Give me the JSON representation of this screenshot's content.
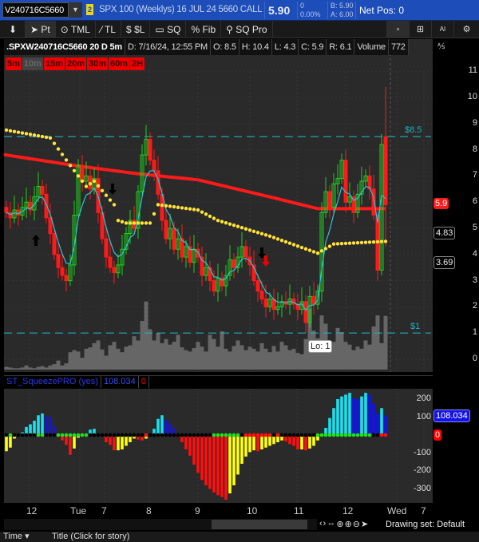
{
  "topbar": {
    "symbol": "V240716C5660",
    "link_badge": "2",
    "description": "SPX 100 (Weeklys) 16 JUL 24 5660 CALL",
    "last": "5.90",
    "change": "0",
    "change_pct": "0.00%",
    "bid": "B: 5.90",
    "ask": "A: 6.00",
    "net_pos": "Net Pos: 0"
  },
  "toolbar": {
    "items": [
      {
        "icon": "pin-icon",
        "label": ""
      },
      {
        "icon": "pointer-icon",
        "label": "Pt"
      },
      {
        "icon": "tml-icon",
        "label": "TML"
      },
      {
        "icon": "trendline-icon",
        "label": "TL"
      },
      {
        "icon": "price-level-icon",
        "label": "$L"
      },
      {
        "icon": "square-icon",
        "label": "SQ"
      },
      {
        "icon": "percent-icon",
        "label": "Fib"
      },
      {
        "icon": "sq-pro-icon",
        "label": "SQ Pro"
      }
    ],
    "right": [
      {
        "icon": "single-layout-icon",
        "glyph": "▫"
      },
      {
        "icon": "grid-layout-icon",
        "glyph": "⊞"
      },
      {
        "icon": "ai-icon",
        "glyph": "AI"
      },
      {
        "icon": "gear-icon",
        "glyph": "⚙"
      }
    ]
  },
  "info": {
    "symbol_period": ".SPXW240716C5660 20 D 5m",
    "date": "D: 7/16/24, 12:55 PM",
    "open": "O: 8.5",
    "high": "H: 10.4",
    "low": "L: 4.3",
    "close": "C: 5.9",
    "range": "R: 6.1",
    "volume_label": "Volume",
    "volume": "772"
  },
  "timeframes": [
    {
      "label": "5m",
      "active": true
    },
    {
      "label": "10m",
      "active": false
    },
    {
      "label": "15m",
      "active": true
    },
    {
      "label": "20m",
      "active": true
    },
    {
      "label": "30m",
      "active": true
    },
    {
      "label": "60m",
      "active": true
    },
    {
      "label": "2H",
      "active": true
    }
  ],
  "colors": {
    "up": "#1fd01f",
    "down": "#ff1a1a",
    "ma_red": "#ff1a1a",
    "dots_yellow": "#ffe23a",
    "ema_cyan": "#2ec4d6",
    "level": "#1fb0c0",
    "volume": "#666666",
    "sq_cyan": "#19e0f0",
    "sq_blue": "#1414e0",
    "sq_red": "#ff1010",
    "sq_yellow": "#ffff10"
  },
  "chart_data": [
    {
      "type": "candlestick",
      "title": ".SPXW240716C5660 20 D 5m",
      "y_ticks": [
        "0",
        "1",
        "2",
        "3",
        "4",
        "5",
        "6",
        "7",
        "8",
        "9",
        "10",
        "11"
      ],
      "ylim": [
        0,
        11.5
      ],
      "x_tick_labels": [
        "12",
        "Tue",
        "7",
        "8",
        "9",
        "10",
        "11",
        "12",
        "Wed",
        "7"
      ],
      "closes": [
        5.6,
        5.4,
        5.7,
        5.5,
        5.8,
        6.0,
        5.7,
        6.2,
        6.6,
        6.3,
        5.4,
        4.8,
        4.0,
        3.5,
        3.2,
        3.0,
        3.6,
        5.5,
        7.4,
        6.8,
        7.0,
        6.5,
        6.9,
        5.6,
        4.6,
        3.9,
        3.5,
        3.3,
        3.6,
        4.2,
        4.8,
        5.3,
        5.0,
        6.4,
        7.8,
        8.4,
        7.6,
        7.2,
        6.3,
        5.3,
        4.6,
        5.0,
        4.2,
        4.6,
        3.9,
        4.3,
        3.7,
        4.2,
        3.9,
        3.2,
        3.5,
        3.0,
        2.6,
        3.1,
        2.8,
        3.2,
        3.8,
        3.5,
        3.9,
        4.3,
        3.9,
        3.6,
        3.0,
        2.6,
        2.3,
        2.0,
        2.3,
        1.9,
        2.0,
        2.2,
        2.1,
        2.3,
        2.1,
        1.9,
        2.2,
        1.4,
        2.4,
        2.1,
        2.6,
        5.6,
        6.4,
        5.8,
        6.7,
        6.9,
        7.6,
        6.0,
        6.2,
        5.6,
        6.3,
        6.8,
        7.0,
        6.5,
        5.5,
        3.4,
        8.2,
        5.9
      ],
      "current_bar": {
        "open": 8.5,
        "high": 10.4,
        "low": 4.3,
        "close": 5.9
      },
      "volume": [
        40,
        30,
        20,
        20,
        30,
        60,
        30,
        20,
        40,
        50,
        30,
        60,
        80,
        130,
        60,
        90,
        250,
        280,
        260,
        170,
        300,
        320,
        380,
        420,
        290,
        200,
        350,
        400,
        300,
        250,
        330,
        350,
        480,
        420,
        700,
        980,
        580,
        420,
        530,
        380,
        440,
        360,
        400,
        500,
        320,
        280,
        260,
        310,
        400,
        330,
        260,
        500,
        440,
        330,
        550,
        300,
        260,
        340,
        420,
        350,
        280,
        330,
        300,
        260,
        380,
        300,
        250,
        340,
        260,
        400,
        350,
        280,
        300,
        240,
        220,
        440,
        880,
        560,
        450,
        780,
        660,
        380,
        400,
        600,
        540,
        400,
        360,
        280,
        330,
        300,
        420,
        360,
        620,
        780,
        380,
        772
      ],
      "ma_red": [
        [
          0,
          7.8
        ],
        [
          17,
          7.4
        ],
        [
          32,
          7.1
        ],
        [
          48,
          6.85
        ],
        [
          66,
          6.2
        ],
        [
          78,
          5.75
        ],
        [
          95,
          5.75
        ]
      ],
      "dots_yellow": [
        [
          0,
          8.75
        ],
        [
          11,
          8.45
        ],
        [
          16,
          7.4
        ],
        [
          18,
          7.0
        ],
        [
          20,
          6.6
        ],
        [
          22,
          6.8
        ],
        [
          27,
          5.9
        ],
        [
          28,
          5.3
        ],
        [
          30,
          5.2
        ],
        [
          36,
          5.2
        ],
        [
          38,
          5.9
        ],
        [
          48,
          5.7
        ],
        [
          53,
          5.3
        ],
        [
          66,
          4.7
        ],
        [
          78,
          4.05
        ],
        [
          82,
          4.4
        ],
        [
          95,
          4.5
        ]
      ],
      "levels": [
        {
          "label": "$8.5",
          "value": 8.5
        },
        {
          "label": "$1",
          "value": 1
        }
      ],
      "price_badges": [
        {
          "label": "5.9",
          "value": 5.9,
          "color": "#ff1a1a"
        },
        {
          "label": "4.83",
          "value": 4.83
        },
        {
          "label": "3.69",
          "value": 3.69
        }
      ],
      "low_bubble": "Lo: 1"
    },
    {
      "type": "bar",
      "title": "ST_SqueezePRO (yes)",
      "current_value": "108.034",
      "zero_label": "0",
      "y_ticks": [
        "200",
        "100",
        "0",
        "-100",
        "-200",
        "-300"
      ],
      "ylim": [
        -380,
        260
      ],
      "values": [
        -90,
        -70,
        -20,
        0,
        15,
        45,
        60,
        80,
        110,
        120,
        105,
        100,
        50,
        0,
        -30,
        -55,
        -110,
        -75,
        -15,
        0,
        0,
        30,
        35,
        5,
        -5,
        -40,
        -55,
        -85,
        -85,
        -80,
        -60,
        -40,
        -20,
        -25,
        -30,
        -20,
        0,
        35,
        90,
        110,
        85,
        65,
        35,
        0,
        -40,
        -80,
        -115,
        -165,
        -210,
        -250,
        -280,
        -300,
        -320,
        -335,
        -345,
        -360,
        -325,
        -280,
        -220,
        -160,
        -120,
        -95,
        -85,
        -90,
        -80,
        -70,
        -60,
        -50,
        -40,
        -30,
        -35,
        -50,
        -60,
        -80,
        -80,
        -85,
        -75,
        -60,
        -30,
        0,
        40,
        95,
        150,
        200,
        215,
        225,
        235,
        205,
        200,
        215,
        235,
        225,
        175,
        120,
        150,
        108.034
      ],
      "squeeze_dots": "kgkkkkkkggkkkggggggggkkkkkkkkkkkkkkrkkkkkkkkkkkkkkkkgggggggkrrrrrrrkrkkkkkkkkkggggggggggggggkkrr"
    }
  ],
  "time_axis": [
    "12",
    "Tue",
    "7",
    "8",
    "9",
    "10",
    "11",
    "12",
    "Wed",
    "7"
  ],
  "footer": {
    "drawing_set": "Drawing set: Default",
    "time": "Time",
    "title": "Title (Click for story)"
  }
}
